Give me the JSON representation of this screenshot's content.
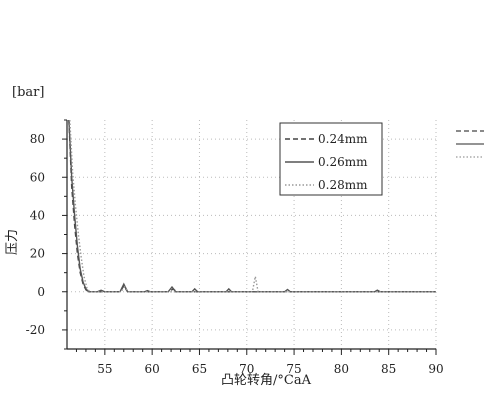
{
  "chart_data": {
    "type": "line",
    "title": "",
    "unit_label": "[bar]",
    "xlabel": "凸轮转角/°CaA",
    "ylabel": "压力",
    "xlim": [
      51,
      90
    ],
    "ylim": [
      -30,
      90
    ],
    "x_ticks": [
      55,
      60,
      65,
      70,
      75,
      80,
      85,
      90
    ],
    "y_ticks": [
      -20,
      0,
      20,
      40,
      60,
      80
    ],
    "grid": true,
    "legend": {
      "placement": "top-right",
      "entries": [
        "0.24mm",
        "0.26mm",
        "0.28mm"
      ]
    },
    "series": [
      {
        "name": "0.24mm",
        "color": "#444444",
        "dash": "dashed",
        "x": [
          51.2,
          51.5,
          51.8,
          52.1,
          52.4,
          52.7,
          53.0,
          53.3,
          56.6,
          57.0,
          57.4,
          61.8,
          62.2,
          62.6,
          90
        ],
        "y": [
          90,
          55,
          35,
          20,
          10,
          4,
          1,
          0,
          0,
          3,
          0,
          0,
          1.5,
          0,
          0
        ]
      },
      {
        "name": "0.26mm",
        "color": "#555555",
        "dash": "solid",
        "x": [
          51.2,
          51.5,
          51.8,
          52.1,
          52.4,
          52.7,
          53.0,
          53.3,
          54.2,
          54.6,
          55.0,
          56.6,
          57.0,
          57.4,
          59.2,
          59.5,
          59.8,
          61.7,
          62.1,
          62.5,
          64.2,
          64.5,
          64.8,
          67.8,
          68.1,
          68.4,
          74.0,
          74.3,
          74.6,
          83.5,
          83.8,
          84.1,
          90
        ],
        "y": [
          90,
          60,
          40,
          24,
          12,
          5,
          1.5,
          0,
          0,
          0.8,
          0,
          0,
          4,
          0,
          0,
          0.6,
          0,
          0,
          2.5,
          0,
          0,
          1.5,
          0,
          0,
          1.5,
          0,
          0,
          1.2,
          0,
          0,
          0.8,
          0,
          0
        ]
      },
      {
        "name": "0.28mm",
        "color": "#999999",
        "dash": "dotted",
        "x": [
          51.3,
          51.6,
          51.9,
          52.2,
          52.5,
          52.8,
          53.1,
          53.4,
          56.7,
          57.1,
          57.5,
          70.6,
          70.9,
          71.2,
          90
        ],
        "y": [
          90,
          62,
          45,
          30,
          18,
          8,
          2,
          0,
          0,
          2.5,
          0,
          0,
          8,
          0,
          0
        ]
      }
    ]
  }
}
